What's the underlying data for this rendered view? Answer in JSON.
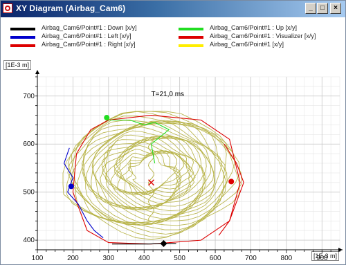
{
  "window": {
    "title": "XY Diagram (Airbag_Cam6)",
    "minimize": "_",
    "maximize": "□",
    "close": "×"
  },
  "legend": {
    "items": [
      {
        "label": "Airbag_Cam6/Point#1 : Down [x/y]",
        "color": "#000000"
      },
      {
        "label": "Airbag_Cam6/Point#1 : Left [x/y]",
        "color": "#0000cc"
      },
      {
        "label": "Airbag_Cam6/Point#1 : Right [x/y]",
        "color": "#dd0000"
      },
      {
        "label": "Airbag_Cam6/Point#1 : Up [x/y]",
        "color": "#22dd22"
      },
      {
        "label": "Airbag_Cam6/Point#1 : Visualizer [x/y]",
        "color": "#dd0000"
      },
      {
        "label": "Airbag_Cam6/Point#1 [x/y]",
        "color": "#ffee00"
      }
    ]
  },
  "chart_data": {
    "type": "scatter",
    "annotation": "T=21,0 ms",
    "y_unit": "[1E-3 m]",
    "x_unit": "[1E-3 m]",
    "xlim": [
      100,
      950
    ],
    "ylim": [
      380,
      740
    ],
    "x_ticks": [
      "100",
      "200",
      "300",
      "400",
      "500",
      "600",
      "700",
      "800",
      "900"
    ],
    "y_ticks": [
      "400",
      "500",
      "600",
      "700"
    ],
    "grid": true,
    "series": [
      {
        "name": "Airbag_Cam6/Point#1 : Down [x/y]",
        "color": "#000000",
        "points": [
          [
            310,
            392
          ],
          [
            360,
            392
          ],
          [
            410,
            392
          ],
          [
            450,
            393
          ],
          [
            490,
            393
          ]
        ],
        "marker": [
          455,
          393
        ]
      },
      {
        "name": "Airbag_Cam6/Point#1 : Left [x/y]",
        "color": "#0000cc",
        "points": [
          [
            190,
            592
          ],
          [
            175,
            560
          ],
          [
            200,
            530
          ],
          [
            185,
            500
          ],
          [
            215,
            475
          ],
          [
            240,
            440
          ],
          [
            260,
            420
          ],
          [
            285,
            405
          ]
        ],
        "marker": [
          195,
          512
        ]
      },
      {
        "name": "Airbag_Cam6/Point#1 : Right [x/y]",
        "color": "#dd0000",
        "points": [
          [
            625,
            600
          ],
          [
            660,
            560
          ],
          [
            680,
            520
          ],
          [
            660,
            480
          ],
          [
            640,
            440
          ],
          [
            610,
            410
          ]
        ],
        "marker": [
          645,
          522
        ]
      },
      {
        "name": "Airbag_Cam6/Point#1 : Up [x/y]",
        "color": "#22dd22",
        "points": [
          [
            300,
            650
          ],
          [
            360,
            650
          ],
          [
            400,
            640
          ],
          [
            430,
            645
          ],
          [
            470,
            630
          ],
          [
            420,
            600
          ],
          [
            430,
            560
          ]
        ],
        "marker": [
          295,
          655
        ]
      },
      {
        "name": "Airbag_Cam6/Point#1 : Visualizer [x/y]",
        "color": "#dd0000",
        "points": [
          [
            300,
            650
          ],
          [
            420,
            660
          ],
          [
            560,
            650
          ],
          [
            640,
            610
          ],
          [
            670,
            520
          ],
          [
            640,
            440
          ],
          [
            560,
            400
          ],
          [
            420,
            392
          ],
          [
            300,
            395
          ],
          [
            240,
            420
          ],
          [
            200,
            500
          ],
          [
            210,
            580
          ],
          [
            250,
            630
          ],
          [
            300,
            650
          ]
        ],
        "marker": [
          420,
          520
        ]
      },
      {
        "name": "Airbag_Cam6/Point#1 [x/y]",
        "color": "#b5b040",
        "center": [
          420,
          540
        ],
        "rx": 240,
        "ry": 125
      }
    ]
  }
}
